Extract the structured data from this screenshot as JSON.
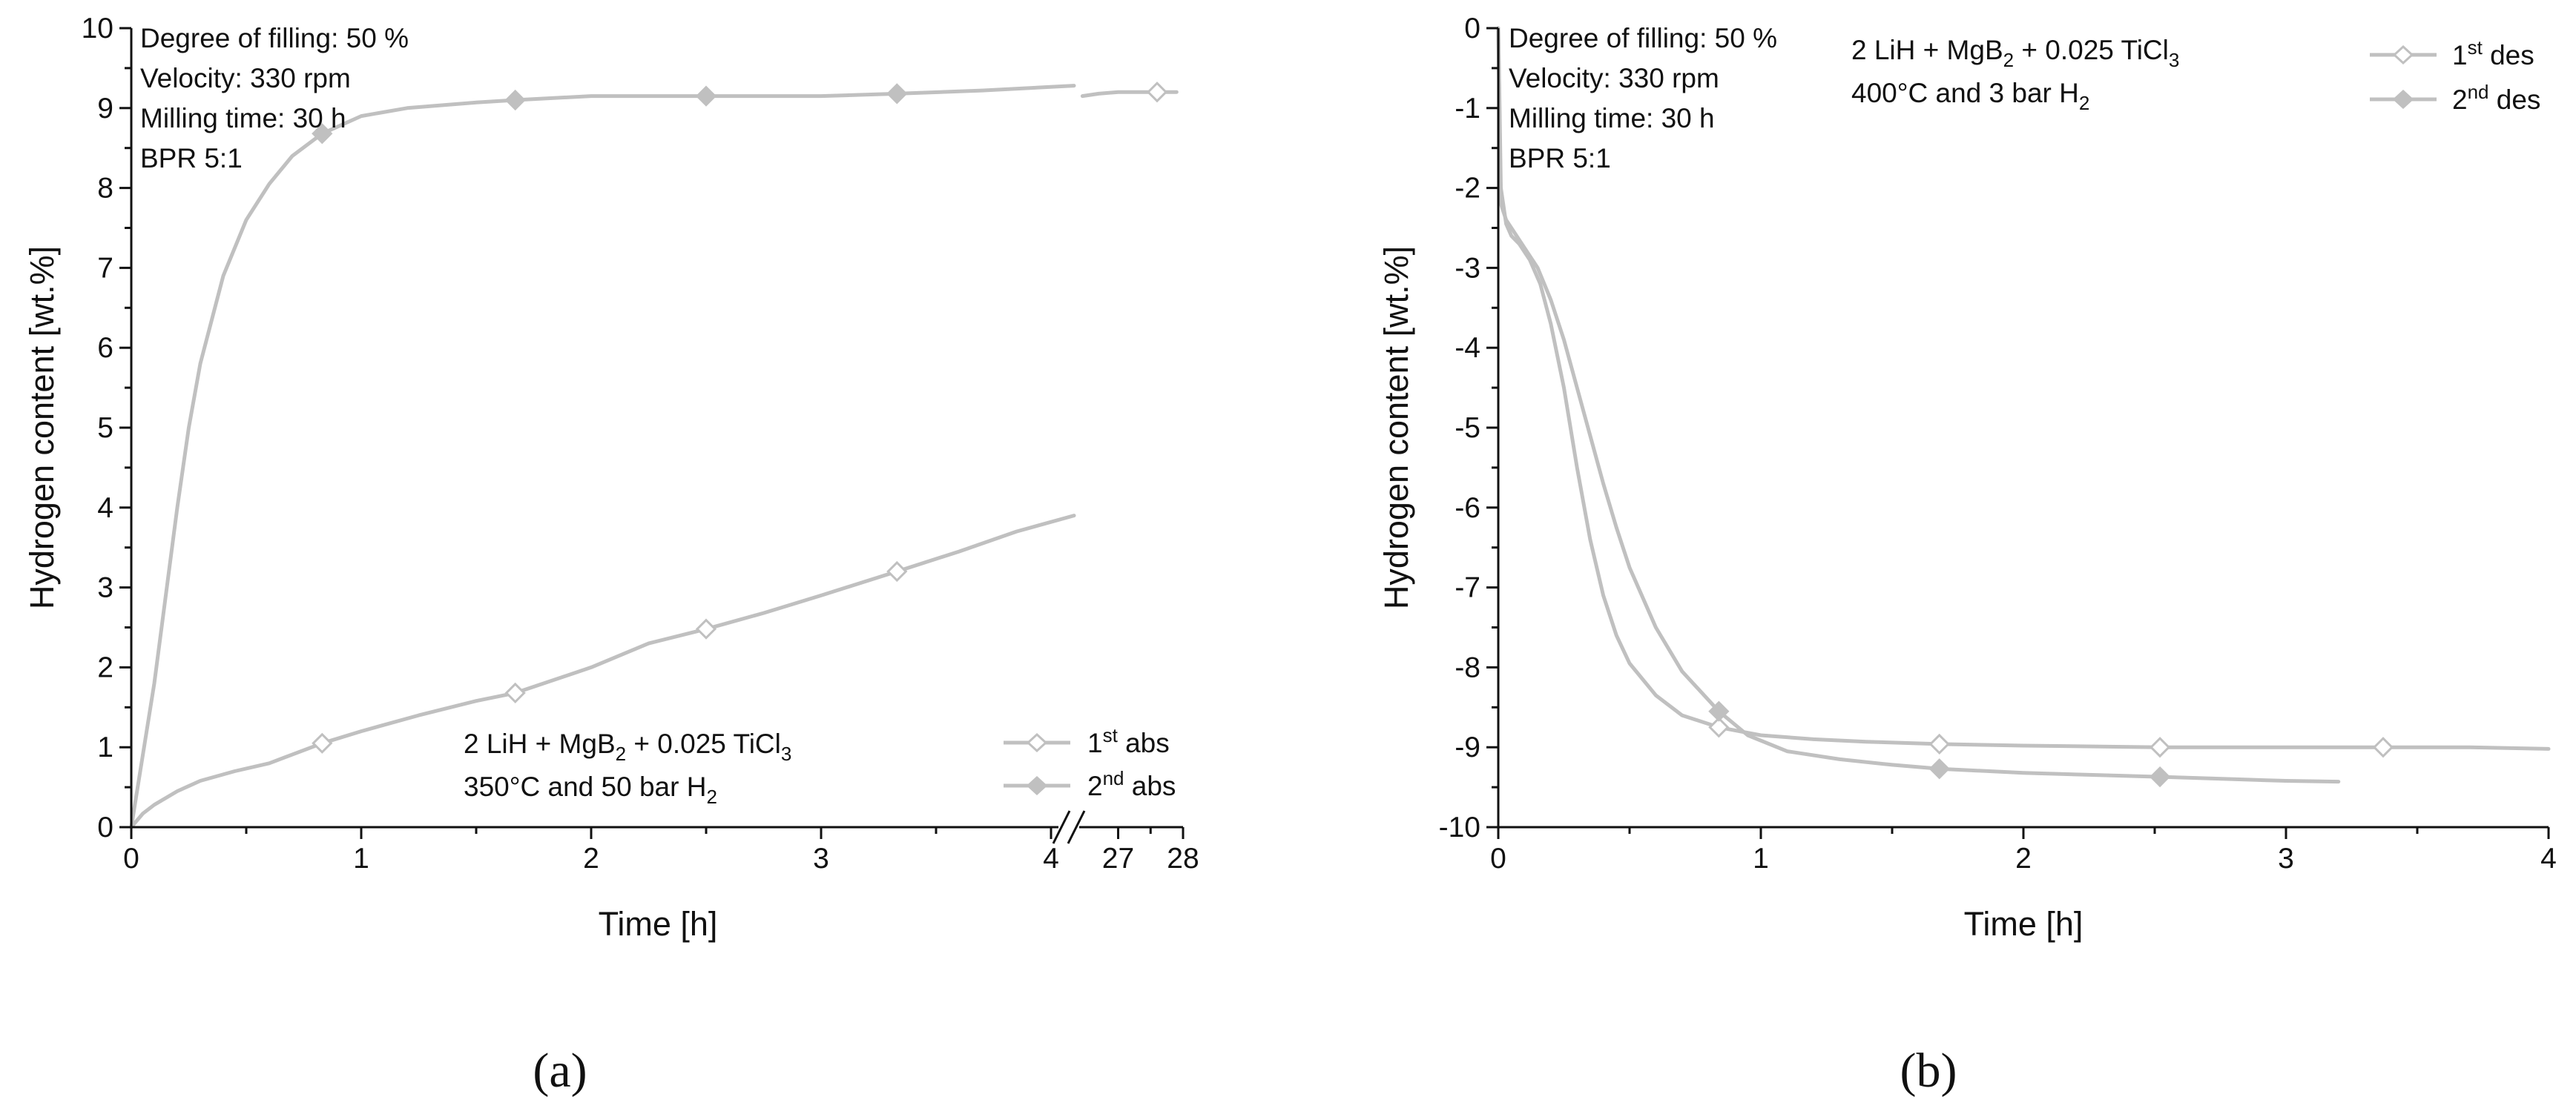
{
  "colors": {
    "curve": "#c0c0c0",
    "axis": "#111111",
    "background": "#ffffff"
  },
  "chart_data": [
    {
      "panel": "(a)",
      "type": "line",
      "xlabel": "Time [h]",
      "ylabel": "Hydrogen content [wt.%]",
      "ylim": [
        0,
        10
      ],
      "xlim": [
        0,
        4.1
      ],
      "x_break": {
        "after": 4.1,
        "resume_range": [
          26.4,
          28.0
        ],
        "resume_ticks": [
          "27",
          "28"
        ]
      },
      "x_ticks": [
        "0",
        "1",
        "2",
        "3",
        "4"
      ],
      "y_ticks": [
        "0",
        "1",
        "2",
        "3",
        "4",
        "5",
        "6",
        "7",
        "8",
        "9",
        "10"
      ],
      "annotation_top": [
        "Degree of filling: 50 %",
        "Velocity: 330 rpm",
        "Milling time: 30 h",
        "BPR 5:1"
      ],
      "annotation_mid": {
        "formula_prefix": "2 LiH + MgB",
        "sub1": "2",
        "formula_middle": " + 0.025 TiCl",
        "sub2": "3",
        "condition": "350°C and 50 bar H",
        "cond_sub": "2"
      },
      "legend": [
        {
          "number": "1",
          "sup": "st",
          "text": " abs",
          "marker": "open-diamond"
        },
        {
          "number": "2",
          "sup": "nd",
          "text": " abs",
          "marker": "filled-diamond"
        }
      ],
      "series": [
        {
          "name": "1st abs",
          "x": [
            0,
            0.05,
            0.1,
            0.2,
            0.3,
            0.45,
            0.6,
            0.83,
            1.0,
            1.25,
            1.5,
            1.67,
            2.0,
            2.25,
            2.5,
            2.75,
            3.0,
            3.33,
            3.6,
            3.85,
            4.1
          ],
          "y": [
            0,
            0.17,
            0.28,
            0.45,
            0.58,
            0.7,
            0.8,
            1.05,
            1.2,
            1.4,
            1.58,
            1.68,
            2.0,
            2.3,
            2.48,
            2.68,
            2.9,
            3.2,
            3.45,
            3.7,
            3.9
          ],
          "markers_x": [
            0.83,
            1.67,
            2.5,
            3.33
          ]
        },
        {
          "name": "2nd abs",
          "x": [
            0,
            0.05,
            0.1,
            0.15,
            0.2,
            0.25,
            0.3,
            0.4,
            0.5,
            0.6,
            0.7,
            0.83,
            1.0,
            1.2,
            1.5,
            1.67,
            2.0,
            2.5,
            3.0,
            3.33,
            3.7,
            4.1
          ],
          "y": [
            0,
            0.9,
            1.8,
            2.9,
            4.0,
            5.0,
            5.8,
            6.9,
            7.6,
            8.05,
            8.4,
            8.68,
            8.9,
            9.0,
            9.07,
            9.1,
            9.15,
            9.15,
            9.15,
            9.18,
            9.22,
            9.28
          ],
          "markers_x": [
            0.83,
            1.67,
            2.5,
            3.33
          ]
        }
      ],
      "after_break": {
        "x": [
          26.45,
          26.7,
          27.0,
          27.3,
          27.6,
          27.9
        ],
        "y": [
          9.15,
          9.18,
          9.2,
          9.2,
          9.2,
          9.2
        ],
        "marker_x": 27.6,
        "marker_series": "1st abs"
      }
    },
    {
      "panel": "(b)",
      "type": "line",
      "xlabel": "Time [h]",
      "ylabel": "Hydrogen content [wt.%]",
      "ylim": [
        -10,
        0
      ],
      "xlim": [
        0,
        4
      ],
      "x_ticks": [
        "0",
        "1",
        "2",
        "3",
        "4"
      ],
      "y_ticks": [
        "0",
        "-1",
        "-2",
        "-3",
        "-4",
        "-5",
        "-6",
        "-7",
        "-8",
        "-9",
        "-10"
      ],
      "annotation_top": [
        "Degree of filling: 50 %",
        "Velocity: 330 rpm",
        "Milling time: 30 h",
        "BPR 5:1"
      ],
      "annotation_right": {
        "formula_prefix": "2 LiH + MgB",
        "sub1": "2",
        "formula_middle": " + 0.025 TiCl",
        "sub2": "3",
        "condition": "400°C and 3 bar H",
        "cond_sub": "2"
      },
      "legend": [
        {
          "number": "1",
          "sup": "st",
          "text": " des",
          "marker": "open-diamond"
        },
        {
          "number": "2",
          "sup": "nd",
          "text": " des",
          "marker": "filled-diamond"
        }
      ],
      "series": [
        {
          "name": "1st des",
          "x": [
            0,
            0.005,
            0.01,
            0.03,
            0.05,
            0.08,
            0.12,
            0.16,
            0.2,
            0.25,
            0.3,
            0.35,
            0.4,
            0.45,
            0.5,
            0.6,
            0.7,
            0.84,
            1.0,
            1.2,
            1.4,
            1.68,
            2.0,
            2.52,
            3.0,
            3.37,
            3.7,
            4.0
          ],
          "y": [
            0,
            -1.0,
            -2.0,
            -2.45,
            -2.6,
            -2.7,
            -2.9,
            -3.2,
            -3.7,
            -4.5,
            -5.5,
            -6.4,
            -7.1,
            -7.6,
            -7.95,
            -8.35,
            -8.6,
            -8.75,
            -8.85,
            -8.9,
            -8.93,
            -8.96,
            -8.98,
            -9.0,
            -9.0,
            -9.0,
            -9.0,
            -9.02
          ],
          "markers_x": [
            0.84,
            1.68,
            2.52,
            3.37
          ]
        },
        {
          "name": "2nd des",
          "x": [
            0,
            0.005,
            0.01,
            0.03,
            0.06,
            0.1,
            0.15,
            0.2,
            0.25,
            0.3,
            0.35,
            0.4,
            0.45,
            0.5,
            0.6,
            0.7,
            0.84,
            0.95,
            1.1,
            1.3,
            1.5,
            1.68,
            2.0,
            2.3,
            2.52,
            2.8,
            3.0,
            3.2
          ],
          "y": [
            0,
            -1.2,
            -2.2,
            -2.4,
            -2.55,
            -2.75,
            -3.0,
            -3.4,
            -3.9,
            -4.5,
            -5.1,
            -5.7,
            -6.25,
            -6.75,
            -7.5,
            -8.05,
            -8.55,
            -8.85,
            -9.05,
            -9.15,
            -9.22,
            -9.27,
            -9.32,
            -9.35,
            -9.37,
            -9.4,
            -9.42,
            -9.43
          ],
          "markers_x": [
            0.84,
            1.68,
            2.52
          ]
        }
      ]
    }
  ]
}
